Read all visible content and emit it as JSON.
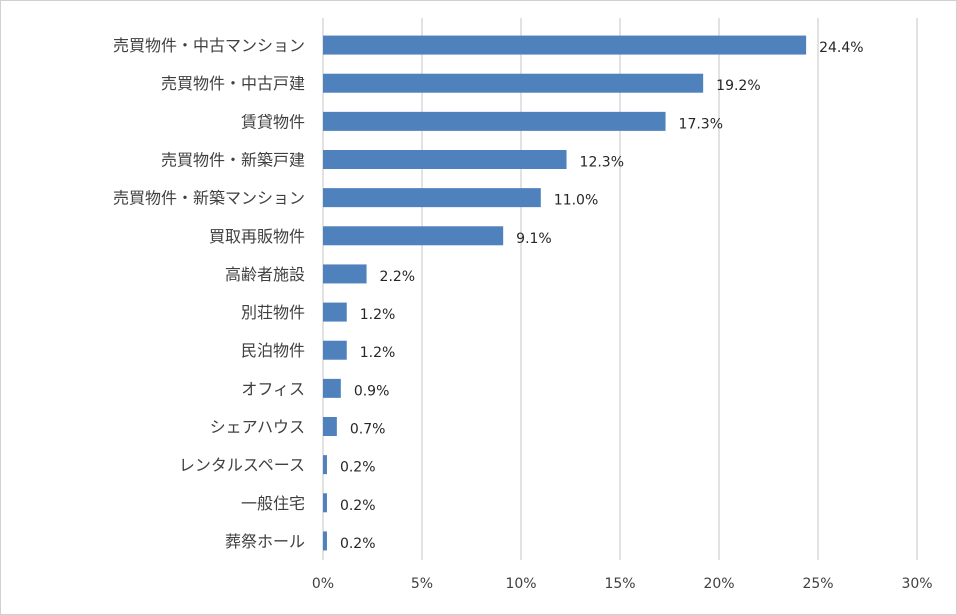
{
  "chart_data": {
    "type": "bar",
    "orientation": "horizontal",
    "categories": [
      "売買物件・中古マンション",
      "売買物件・中古戸建",
      "賃貸物件",
      "売買物件・新築戸建",
      "売買物件・新築マンション",
      "買取再販物件",
      "高齢者施設",
      "別荘物件",
      "民泊物件",
      "オフィス",
      "シェアハウス",
      "レンタルスペース",
      "一般住宅",
      "葬祭ホール"
    ],
    "values": [
      24.4,
      19.2,
      17.3,
      12.3,
      11.0,
      9.1,
      2.2,
      1.2,
      1.2,
      0.9,
      0.7,
      0.2,
      0.2,
      0.2
    ],
    "data_labels": [
      "24.4%",
      "19.2%",
      "17.3%",
      "12.3%",
      "11.0%",
      "9.1%",
      "2.2%",
      "1.2%",
      "1.2%",
      "0.9%",
      "0.7%",
      "0.2%",
      "0.2%",
      "0.2%"
    ],
    "x_ticks": [
      "0%",
      "5%",
      "10%",
      "15%",
      "20%",
      "25%",
      "30%"
    ],
    "xlim": [
      0,
      30
    ],
    "grid": true,
    "bar_color": "#4f81bd",
    "grid_color": "#d9d9d9"
  }
}
